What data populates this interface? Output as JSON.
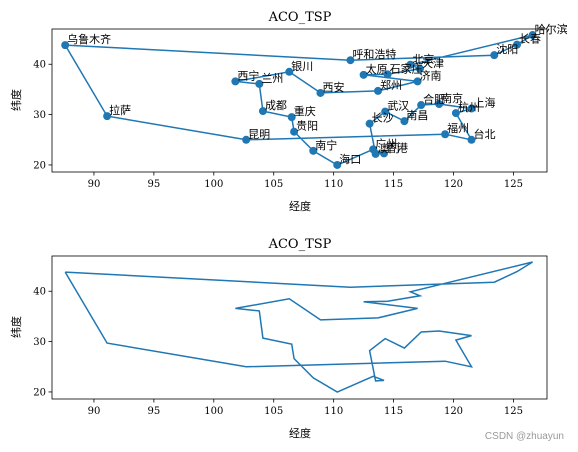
{
  "watermark": "CSDN @zhuayun",
  "colors": {
    "route": "#1f77b4",
    "axes": "#000000"
  },
  "chart_data": [
    {
      "type": "scatter",
      "title": "ACO_TSP",
      "xlabel": "经度",
      "ylabel": "纬度",
      "xlim": [
        86.5,
        127.8
      ],
      "ylim": [
        18.6,
        47.0
      ],
      "xticks": [
        90,
        95,
        100,
        105,
        110,
        115,
        120,
        125
      ],
      "yticks": [
        20,
        30,
        40
      ],
      "show_markers": true,
      "show_labels": true,
      "grid": false
    },
    {
      "type": "line",
      "title": "ACO_TSP",
      "xlabel": "经度",
      "ylabel": "纬度",
      "xlim": [
        86.5,
        127.8
      ],
      "ylim": [
        18.6,
        47.0
      ],
      "xticks": [
        90,
        95,
        100,
        105,
        110,
        115,
        120,
        125
      ],
      "yticks": [
        20,
        30,
        40
      ],
      "show_markers": false,
      "show_labels": false,
      "grid": false
    }
  ],
  "route": [
    {
      "name": "乌鲁木齐",
      "x": 87.6,
      "y": 43.8
    },
    {
      "name": "呼和浩特",
      "x": 111.4,
      "y": 40.8
    },
    {
      "name": "沈阳",
      "x": 123.4,
      "y": 41.8
    },
    {
      "name": "长春",
      "x": 125.3,
      "y": 43.9
    },
    {
      "name": "哈尔滨",
      "x": 126.6,
      "y": 45.8
    },
    {
      "name": "北京",
      "x": 116.4,
      "y": 39.9
    },
    {
      "name": "天津",
      "x": 117.2,
      "y": 39.1
    },
    {
      "name": "石家庄",
      "x": 114.5,
      "y": 38.0
    },
    {
      "name": "太原",
      "x": 112.5,
      "y": 37.9
    },
    {
      "name": "济南",
      "x": 117.0,
      "y": 36.6
    },
    {
      "name": "郑州",
      "x": 113.7,
      "y": 34.7
    },
    {
      "name": "西安",
      "x": 108.9,
      "y": 34.3
    },
    {
      "name": "银川",
      "x": 106.3,
      "y": 38.5
    },
    {
      "name": "西宁",
      "x": 101.8,
      "y": 36.6
    },
    {
      "name": "兰州",
      "x": 103.8,
      "y": 36.1
    },
    {
      "name": "成都",
      "x": 104.1,
      "y": 30.7
    },
    {
      "name": "重庆",
      "x": 106.5,
      "y": 29.5
    },
    {
      "name": "贵阳",
      "x": 106.7,
      "y": 26.6
    },
    {
      "name": "南宁",
      "x": 108.3,
      "y": 22.8
    },
    {
      "name": "海口",
      "x": 110.3,
      "y": 20.0
    },
    {
      "name": "广州",
      "x": 113.3,
      "y": 23.1
    },
    {
      "name": "香港",
      "x": 114.2,
      "y": 22.3
    },
    {
      "name": "澳门",
      "x": 113.5,
      "y": 22.2
    },
    {
      "name": "长沙",
      "x": 113.0,
      "y": 28.2
    },
    {
      "name": "武汉",
      "x": 114.3,
      "y": 30.6
    },
    {
      "name": "南昌",
      "x": 115.9,
      "y": 28.7
    },
    {
      "name": "合肥",
      "x": 117.3,
      "y": 31.9
    },
    {
      "name": "南京",
      "x": 118.8,
      "y": 32.1
    },
    {
      "name": "上海",
      "x": 121.5,
      "y": 31.2
    },
    {
      "name": "杭州",
      "x": 120.2,
      "y": 30.3
    },
    {
      "name": "台北",
      "x": 121.5,
      "y": 25.0
    },
    {
      "name": "福州",
      "x": 119.3,
      "y": 26.1
    },
    {
      "name": "昆明",
      "x": 102.7,
      "y": 25.0
    },
    {
      "name": "拉萨",
      "x": 91.1,
      "y": 29.7
    },
    {
      "name": "乌鲁木齐",
      "x": 87.6,
      "y": 43.8
    }
  ]
}
